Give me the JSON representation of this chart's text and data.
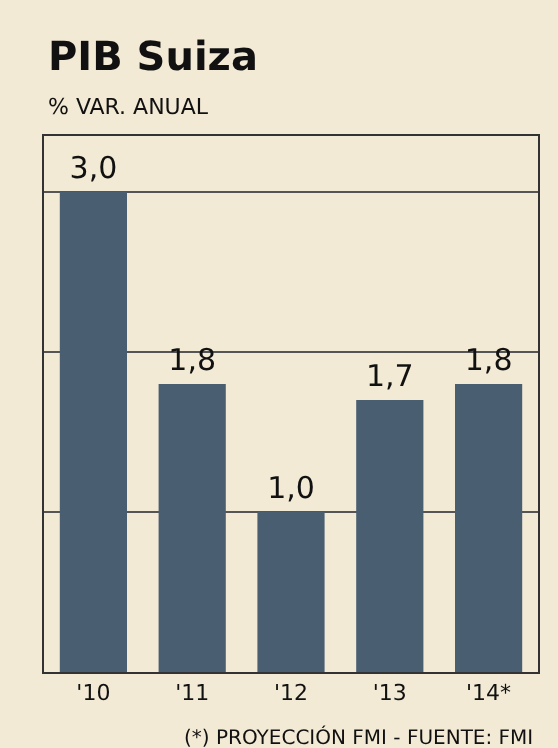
{
  "chart_data": {
    "type": "bar",
    "title": "PIB Suiza",
    "subtitle": "% VAR. ANUAL",
    "categories": [
      "'10",
      "'11",
      "'12",
      "'13",
      "'14*"
    ],
    "values": [
      3.0,
      1.8,
      1.0,
      1.7,
      1.8
    ],
    "value_labels": [
      "3,0",
      "1,8",
      "1,0",
      "1,7",
      "1,8"
    ],
    "color": "#4a5e72",
    "ylim": [
      0,
      3.35
    ],
    "yticks": [
      {
        "value": 0,
        "label": null
      },
      {
        "value": 1,
        "label": null
      },
      {
        "value": 2,
        "label": null
      },
      {
        "value": 3,
        "label": null
      }
    ],
    "grid": "y",
    "tick_labels": "x",
    "annotations": [
      "(*) PROYECCIÓN FMI - FUENTE: FMI"
    ]
  }
}
